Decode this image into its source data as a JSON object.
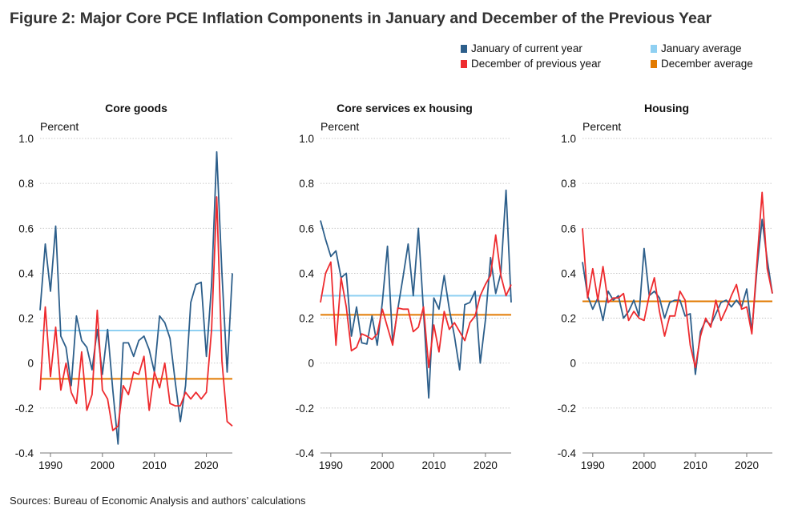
{
  "title": "Figure 2: Major Core PCE Inflation Components in January and December of the Previous Year",
  "sources": "Sources: Bureau of Economic Analysis and authors’ calculations",
  "colors": {
    "january": "#2d5f8b",
    "december": "#ee2b2f",
    "january_avg": "#8fd0f2",
    "december_avg": "#e27a00"
  },
  "legend": [
    {
      "key": "january",
      "label": "January of current year"
    },
    {
      "key": "december",
      "label": "December of previous year"
    },
    {
      "key": "january_avg",
      "label": "January average"
    },
    {
      "key": "december_avg",
      "label": "December average"
    }
  ],
  "chart_data": [
    {
      "type": "line",
      "title": "Core goods",
      "ylabel": "Percent",
      "ylim": [
        -0.4,
        1.0
      ],
      "yticks": [
        "1.0",
        "0.8",
        "0.6",
        "0.4",
        "0.2",
        "0",
        "-0.2",
        "-0.4"
      ],
      "xticks": [
        "1990",
        "2000",
        "2010",
        "2020"
      ],
      "xlim": [
        1988,
        2025
      ],
      "grid": true,
      "series": [
        {
          "name": "January of current year",
          "values": [
            0.235,
            0.53,
            0.32,
            0.61,
            0.12,
            0.07,
            -0.1,
            0.21,
            0.1,
            0.07,
            -0.03,
            0.15,
            -0.05,
            0.15,
            -0.12,
            -0.36,
            0.09,
            0.09,
            0.03,
            0.1,
            0.12,
            0.06,
            -0.04,
            0.21,
            0.18,
            0.11,
            -0.08,
            -0.26,
            -0.1,
            0.27,
            0.35,
            0.36,
            0.03,
            0.35,
            0.94,
            0.4,
            -0.04,
            0.4
          ]
        },
        {
          "name": "December of previous year",
          "values": [
            -0.12,
            0.25,
            -0.06,
            0.16,
            -0.12,
            0.0,
            -0.13,
            -0.18,
            0.05,
            -0.21,
            -0.14,
            0.235,
            -0.12,
            -0.16,
            -0.3,
            -0.28,
            -0.1,
            -0.14,
            -0.04,
            -0.05,
            0.03,
            -0.21,
            -0.04,
            -0.11,
            0.0,
            -0.18,
            -0.19,
            -0.19,
            -0.13,
            -0.16,
            -0.13,
            -0.16,
            -0.13,
            0.15,
            0.74,
            0.01,
            -0.26,
            -0.28
          ]
        }
      ],
      "averages": {
        "January average": 0.145,
        "December average": -0.07
      }
    },
    {
      "type": "line",
      "title": "Core services ex housing",
      "ylabel": "Percent",
      "ylim": [
        -0.4,
        1.0
      ],
      "yticks": [
        "1.0",
        "0.8",
        "0.6",
        "0.4",
        "0.2",
        "0",
        "-0.2",
        "-0.4"
      ],
      "xticks": [
        "1990",
        "2000",
        "2010",
        "2020"
      ],
      "xlim": [
        1988,
        2025
      ],
      "grid": true,
      "series": [
        {
          "name": "January of current year",
          "values": [
            0.635,
            0.55,
            0.475,
            0.5,
            0.38,
            0.4,
            0.12,
            0.25,
            0.09,
            0.085,
            0.21,
            0.08,
            0.27,
            0.52,
            0.09,
            0.24,
            0.38,
            0.53,
            0.3,
            0.6,
            0.23,
            -0.155,
            0.29,
            0.24,
            0.39,
            0.24,
            0.12,
            -0.03,
            0.26,
            0.27,
            0.32,
            0.0,
            0.19,
            0.47,
            0.31,
            0.4,
            0.77,
            0.27
          ]
        },
        {
          "name": "December of previous year",
          "values": [
            0.27,
            0.4,
            0.45,
            0.08,
            0.38,
            0.25,
            0.055,
            0.07,
            0.13,
            0.12,
            0.105,
            0.13,
            0.24,
            0.16,
            0.08,
            0.245,
            0.24,
            0.24,
            0.14,
            0.16,
            0.25,
            -0.02,
            0.17,
            0.05,
            0.23,
            0.15,
            0.18,
            0.14,
            0.1,
            0.18,
            0.21,
            0.3,
            0.35,
            0.39,
            0.57,
            0.39,
            0.3,
            0.35
          ]
        }
      ],
      "averages": {
        "January average": 0.3,
        "December average": 0.215
      }
    },
    {
      "type": "line",
      "title": "Housing",
      "ylabel": "Percent",
      "ylim": [
        -0.4,
        1.0
      ],
      "yticks": [
        "1.0",
        "0.8",
        "0.6",
        "0.4",
        "0.2",
        "0",
        "-0.2",
        "-0.4"
      ],
      "xticks": [
        "1990",
        "2000",
        "2010",
        "2020"
      ],
      "xlim": [
        1988,
        2025
      ],
      "grid": true,
      "series": [
        {
          "name": "January of current year",
          "values": [
            0.45,
            0.3,
            0.24,
            0.29,
            0.19,
            0.32,
            0.28,
            0.3,
            0.2,
            0.23,
            0.28,
            0.21,
            0.51,
            0.3,
            0.32,
            0.29,
            0.2,
            0.27,
            0.28,
            0.28,
            0.21,
            0.22,
            -0.05,
            0.14,
            0.19,
            0.17,
            0.22,
            0.27,
            0.28,
            0.25,
            0.28,
            0.25,
            0.33,
            0.14,
            0.42,
            0.64,
            0.46,
            0.31
          ]
        },
        {
          "name": "December of previous year",
          "values": [
            0.6,
            0.29,
            0.42,
            0.28,
            0.43,
            0.27,
            0.29,
            0.29,
            0.31,
            0.19,
            0.23,
            0.2,
            0.19,
            0.3,
            0.38,
            0.23,
            0.12,
            0.21,
            0.21,
            0.32,
            0.28,
            0.08,
            -0.02,
            0.12,
            0.2,
            0.16,
            0.28,
            0.19,
            0.24,
            0.3,
            0.35,
            0.24,
            0.25,
            0.13,
            0.45,
            0.76,
            0.42,
            0.31
          ]
        }
      ],
      "averages": {
        "January average": 0.275,
        "December average": 0.275
      }
    }
  ]
}
